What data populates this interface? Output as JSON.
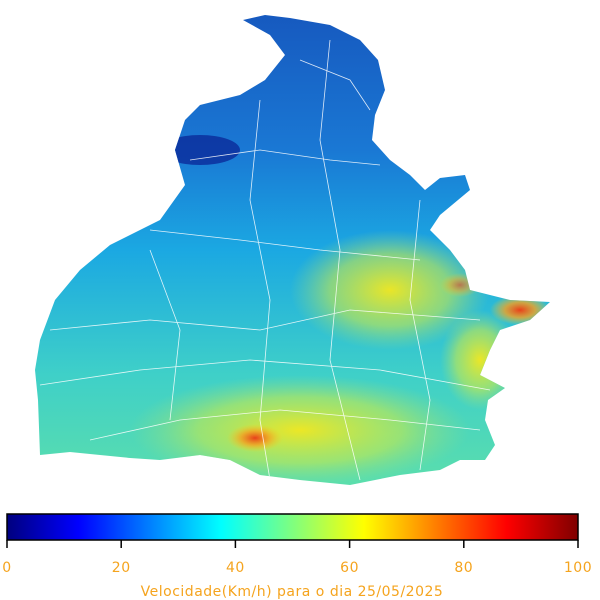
{
  "colorbar": {
    "label": "Velocidade(Km/h) para o dia 25/05/2025",
    "lim": [
      0,
      100
    ],
    "ticks": [
      0,
      20,
      40,
      60,
      80,
      100
    ],
    "colormap": "jet",
    "text_color": "#f5a41e"
  }
}
